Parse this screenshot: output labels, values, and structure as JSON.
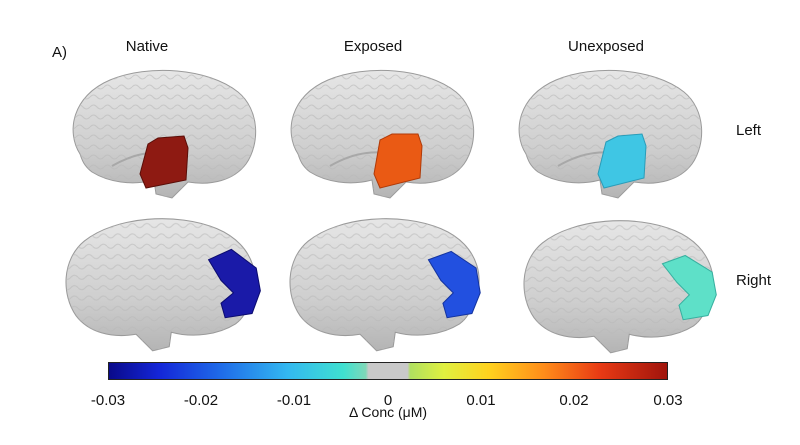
{
  "panel_label": "A)",
  "columns": [
    "Native",
    "Exposed",
    "Unexposed"
  ],
  "rows": [
    "Left",
    "Right"
  ],
  "region_colors": {
    "left_native": "#8e1a12",
    "left_exposed": "#ea5a14",
    "left_unexposed": "#3fc6e4",
    "right_native": "#1a1aa8",
    "right_exposed": "#2250e0",
    "right_unexposed": "#5ee0c8"
  },
  "colorbar": {
    "ticks": [
      "-0.03",
      "-0.02",
      "-0.01",
      "0",
      "0.01",
      "0.02",
      "0.03"
    ],
    "label": "Δ Conc (μM)",
    "colors": [
      "#0a0a8a",
      "#1426d8",
      "#33b8f0",
      "#c9c9c9",
      "#e0f040",
      "#ff8c1a",
      "#a0140c"
    ]
  }
}
